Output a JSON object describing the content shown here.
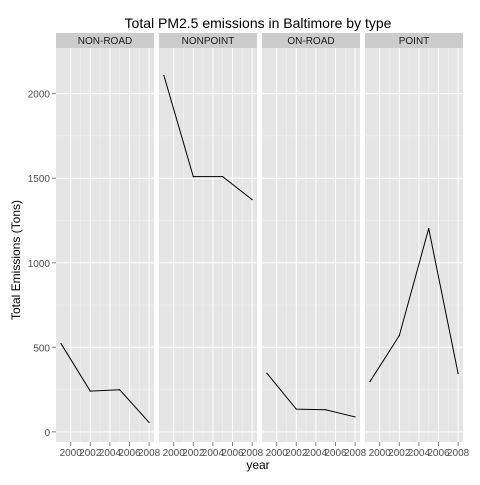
{
  "chart_data": {
    "type": "line",
    "title": "Total PM2.5 emissions in Baltimore by type",
    "xlabel": "year",
    "ylabel": "Total Emissions (Tons)",
    "x": [
      1999,
      2002,
      2005,
      2008
    ],
    "x_ticks": [
      2000,
      2002,
      2004,
      2006,
      2008
    ],
    "x_tick_labels": [
      "2000",
      "2002",
      "2004",
      "2006",
      "2008"
    ],
    "xlim": [
      1998.5,
      2008.5
    ],
    "y_ticks": [
      0,
      500,
      1000,
      1500,
      2000
    ],
    "y_tick_labels": [
      "0",
      "500",
      "1000",
      "1500",
      "2000"
    ],
    "ylim": [
      -60,
      2270
    ],
    "grid": true,
    "legend": "none",
    "series": [
      {
        "name": "NON-ROAD",
        "values": [
          522.94,
          240.85,
          248.93,
          55.82
        ]
      },
      {
        "name": "NONPOINT",
        "values": [
          2107.63,
          1509.5,
          1509.5,
          1373.21
        ]
      },
      {
        "name": "ON-ROAD",
        "values": [
          346.82,
          134.31,
          130.43,
          88.28
        ]
      },
      {
        "name": "POINT",
        "values": [
          296.8,
          569.26,
          1202.49,
          344.98
        ]
      }
    ],
    "colors": {
      "panel_background": "#e5e5e5",
      "strip_background": "#cccccc",
      "grid_major": "#ffffff",
      "grid_minor": "#f2f2f2",
      "line": "#000000",
      "tick_text": "#4d4d4d",
      "title_text": "#000000"
    }
  }
}
